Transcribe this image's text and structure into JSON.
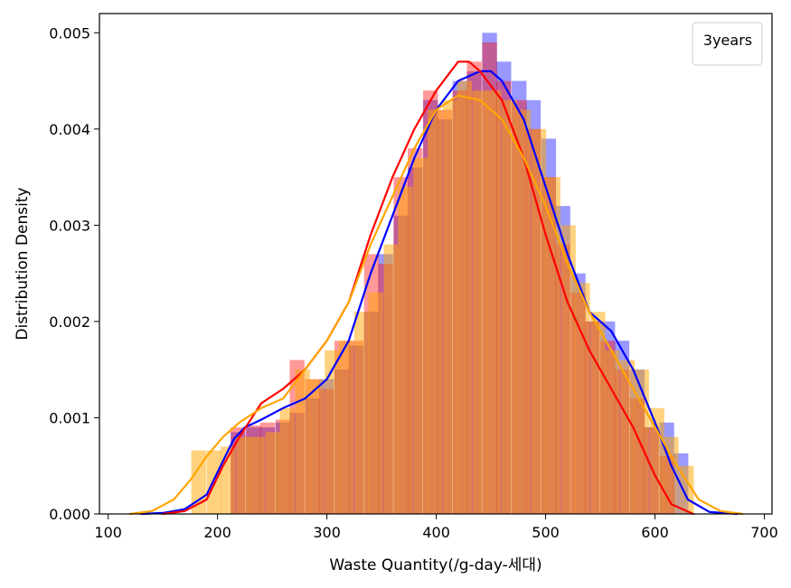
{
  "chart_data": {
    "type": "histogram",
    "xlabel": "Waste Quantity(/g-day-세대)",
    "ylabel": "Distribution Density",
    "xlim": [
      92,
      707
    ],
    "ylim": [
      0,
      0.0052
    ],
    "xticks": [
      100,
      200,
      300,
      400,
      500,
      600,
      700
    ],
    "yticks": [
      0.0,
      0.001,
      0.002,
      0.003,
      0.004,
      0.005
    ],
    "xtick_labels": [
      "100",
      "200",
      "300",
      "400",
      "500",
      "600",
      "700"
    ],
    "ytick_labels": [
      "0.000",
      "0.001",
      "0.002",
      "0.003",
      "0.004",
      "0.005"
    ],
    "legend": {
      "title": "3years",
      "placement": "top-right"
    },
    "grid": false,
    "series": [
      {
        "color": "#0000ff",
        "hist_alpha": 0.4,
        "bin_width": 13.5,
        "bins": [
          [
            212,
            0.00085
          ],
          [
            226,
            0.0009
          ],
          [
            239,
            0.0009
          ],
          [
            253,
            0.00095
          ],
          [
            266,
            0.00105
          ],
          [
            280,
            0.0012
          ],
          [
            293,
            0.0014
          ],
          [
            307,
            0.0015
          ],
          [
            320,
            0.00175
          ],
          [
            334,
            0.0021
          ],
          [
            347,
            0.0027
          ],
          [
            361,
            0.0031
          ],
          [
            374,
            0.0036
          ],
          [
            388,
            0.0043
          ],
          [
            401,
            0.0041
          ],
          [
            415,
            0.0045
          ],
          [
            428,
            0.0046
          ],
          [
            442,
            0.005
          ],
          [
            455,
            0.0047
          ],
          [
            469,
            0.0045
          ],
          [
            482,
            0.0043
          ],
          [
            496,
            0.0039
          ],
          [
            509,
            0.0032
          ],
          [
            523,
            0.0025
          ],
          [
            536,
            0.002
          ],
          [
            550,
            0.002
          ],
          [
            563,
            0.0018
          ],
          [
            577,
            0.0015
          ],
          [
            590,
            0.0009
          ],
          [
            604,
            0.00095
          ],
          [
            617,
            0.00063
          ]
        ],
        "kde": [
          [
            130,
            0.0
          ],
          [
            150,
            1e-05
          ],
          [
            170,
            5e-05
          ],
          [
            190,
            0.0002
          ],
          [
            205,
            0.00055
          ],
          [
            215,
            0.00078
          ],
          [
            225,
            0.0009
          ],
          [
            240,
            0.00098
          ],
          [
            260,
            0.0011
          ],
          [
            280,
            0.0012
          ],
          [
            300,
            0.0014
          ],
          [
            320,
            0.0018
          ],
          [
            340,
            0.0025
          ],
          [
            360,
            0.0031
          ],
          [
            380,
            0.0037
          ],
          [
            400,
            0.0042
          ],
          [
            420,
            0.0045
          ],
          [
            440,
            0.0046
          ],
          [
            450,
            0.0046
          ],
          [
            460,
            0.0045
          ],
          [
            480,
            0.0041
          ],
          [
            500,
            0.0034
          ],
          [
            520,
            0.0027
          ],
          [
            540,
            0.0021
          ],
          [
            560,
            0.0019
          ],
          [
            580,
            0.0015
          ],
          [
            600,
            0.00095
          ],
          [
            615,
            0.0005
          ],
          [
            630,
            0.00015
          ],
          [
            650,
            2e-05
          ],
          [
            675,
            0.0
          ]
        ]
      },
      {
        "color": "#ff0000",
        "hist_alpha": 0.4,
        "bin_width": 13.5,
        "bins": [
          [
            212,
            0.0009
          ],
          [
            226,
            0.00092
          ],
          [
            239,
            0.00095
          ],
          [
            253,
            0.00098
          ],
          [
            266,
            0.0016
          ],
          [
            280,
            0.0014
          ],
          [
            293,
            0.0013
          ],
          [
            307,
            0.0018
          ],
          [
            320,
            0.0018
          ],
          [
            334,
            0.0027
          ],
          [
            347,
            0.0026
          ],
          [
            361,
            0.0035
          ],
          [
            374,
            0.0038
          ],
          [
            388,
            0.0044
          ],
          [
            401,
            0.0042
          ],
          [
            415,
            0.0044
          ],
          [
            428,
            0.0047
          ],
          [
            442,
            0.0049
          ],
          [
            455,
            0.0045
          ],
          [
            469,
            0.0043
          ],
          [
            482,
            0.004
          ],
          [
            496,
            0.0035
          ],
          [
            509,
            0.0028
          ],
          [
            523,
            0.0023
          ],
          [
            536,
            0.002
          ],
          [
            550,
            0.0018
          ],
          [
            563,
            0.0015
          ],
          [
            577,
            0.0012
          ],
          [
            590,
            0.0009
          ],
          [
            604,
            0.0006
          ]
        ],
        "kde": [
          [
            150,
            0.0
          ],
          [
            170,
            3e-05
          ],
          [
            190,
            0.00015
          ],
          [
            205,
            0.0005
          ],
          [
            220,
            0.0008
          ],
          [
            240,
            0.00115
          ],
          [
            260,
            0.0013
          ],
          [
            280,
            0.0015
          ],
          [
            300,
            0.0018
          ],
          [
            320,
            0.0022
          ],
          [
            340,
            0.0029
          ],
          [
            360,
            0.0035
          ],
          [
            380,
            0.004
          ],
          [
            400,
            0.0044
          ],
          [
            420,
            0.0047
          ],
          [
            430,
            0.0047
          ],
          [
            440,
            0.0046
          ],
          [
            460,
            0.0043
          ],
          [
            480,
            0.0037
          ],
          [
            500,
            0.0029
          ],
          [
            520,
            0.0022
          ],
          [
            540,
            0.0017
          ],
          [
            560,
            0.0013
          ],
          [
            580,
            0.0009
          ],
          [
            600,
            0.0004
          ],
          [
            615,
            0.0001
          ],
          [
            635,
            0.0
          ]
        ]
      },
      {
        "color": "#ffa500",
        "hist_alpha": 0.5,
        "bin_width": 13.5,
        "bins": [
          [
            176,
            0.00066
          ],
          [
            190,
            0.00066
          ],
          [
            203,
            0.0007
          ],
          [
            217,
            0.0008
          ],
          [
            230,
            0.0008
          ],
          [
            244,
            0.00085
          ],
          [
            257,
            0.0011
          ],
          [
            271,
            0.0015
          ],
          [
            284,
            0.0014
          ],
          [
            298,
            0.0017
          ],
          [
            311,
            0.0018
          ],
          [
            325,
            0.0021
          ],
          [
            338,
            0.0023
          ],
          [
            352,
            0.0028
          ],
          [
            365,
            0.0034
          ],
          [
            379,
            0.0037
          ],
          [
            392,
            0.0042
          ],
          [
            406,
            0.0043
          ],
          [
            419,
            0.0045
          ],
          [
            433,
            0.0044
          ],
          [
            446,
            0.0044
          ],
          [
            460,
            0.0043
          ],
          [
            473,
            0.0042
          ],
          [
            487,
            0.004
          ],
          [
            500,
            0.0035
          ],
          [
            514,
            0.003
          ],
          [
            527,
            0.0024
          ],
          [
            541,
            0.0021
          ],
          [
            554,
            0.0017
          ],
          [
            568,
            0.0016
          ],
          [
            581,
            0.0015
          ],
          [
            595,
            0.0011
          ],
          [
            608,
            0.0008
          ],
          [
            622,
            0.0005
          ]
        ],
        "kde": [
          [
            120,
            0.0
          ],
          [
            140,
            3e-05
          ],
          [
            160,
            0.00015
          ],
          [
            175,
            0.00035
          ],
          [
            190,
            0.0006
          ],
          [
            205,
            0.0008
          ],
          [
            220,
            0.00095
          ],
          [
            240,
            0.0011
          ],
          [
            260,
            0.0012
          ],
          [
            280,
            0.0015
          ],
          [
            300,
            0.0018
          ],
          [
            320,
            0.0022
          ],
          [
            340,
            0.0028
          ],
          [
            360,
            0.0033
          ],
          [
            380,
            0.0038
          ],
          [
            400,
            0.0042
          ],
          [
            420,
            0.00435
          ],
          [
            440,
            0.0043
          ],
          [
            460,
            0.0041
          ],
          [
            480,
            0.0037
          ],
          [
            500,
            0.0032
          ],
          [
            520,
            0.0026
          ],
          [
            540,
            0.0021
          ],
          [
            560,
            0.0017
          ],
          [
            580,
            0.0013
          ],
          [
            600,
            0.0009
          ],
          [
            620,
            0.0005
          ],
          [
            640,
            0.00015
          ],
          [
            660,
            3e-05
          ],
          [
            680,
            0.0
          ]
        ]
      }
    ]
  }
}
